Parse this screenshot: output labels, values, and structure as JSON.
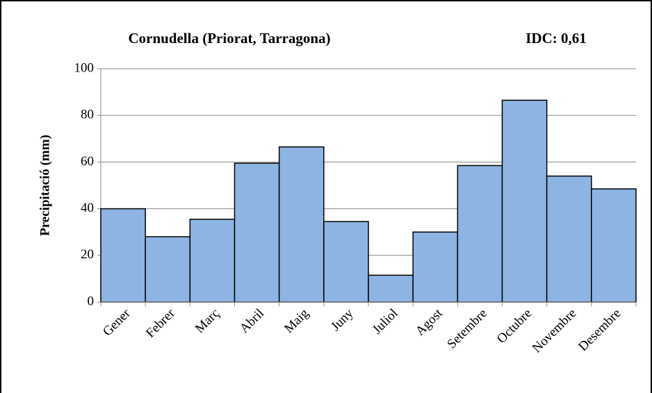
{
  "chart_data": {
    "type": "bar",
    "title": "Cornudella (Priorat, Tarragona)",
    "annotation": "IDC: 0,61",
    "y_label": "Precipitació (mm)",
    "categories": [
      "Gener",
      "Febrer",
      "Març",
      "Abril",
      "Maig",
      "Juny",
      "Juliol",
      "Agost",
      "Setembre",
      "Octubre",
      "Novembre",
      "Desembre"
    ],
    "values": [
      40,
      28,
      35.5,
      59.5,
      66.5,
      34.5,
      11.5,
      30,
      58.5,
      86.5,
      54,
      48.5
    ],
    "color": "#8db4e2",
    "ylim": [
      0,
      100
    ],
    "yticks": [
      0,
      20,
      40,
      60,
      80,
      100
    ],
    "grid": true
  }
}
